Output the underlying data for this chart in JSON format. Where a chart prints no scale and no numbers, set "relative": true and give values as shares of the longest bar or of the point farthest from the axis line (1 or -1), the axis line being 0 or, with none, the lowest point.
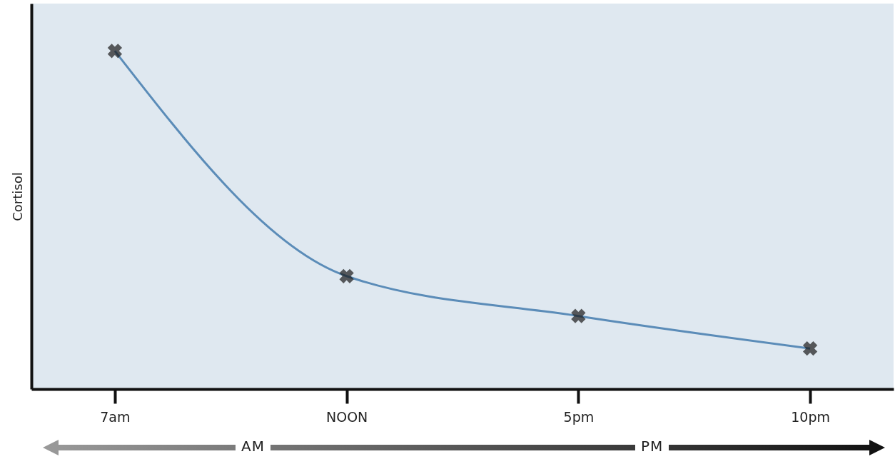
{
  "chart_data": {
    "type": "line",
    "relative": true,
    "ylabel": "Cortisol",
    "categories": [
      "7am",
      "NOON",
      "5pm",
      "10pm"
    ],
    "series": [
      {
        "color": "#5b8cb8",
        "values": [
          1,
          0.334,
          0.216,
          0.12
        ]
      }
    ],
    "marker": "cross",
    "line_style": "solid",
    "annotations": [
      "AM",
      "PM"
    ]
  }
}
